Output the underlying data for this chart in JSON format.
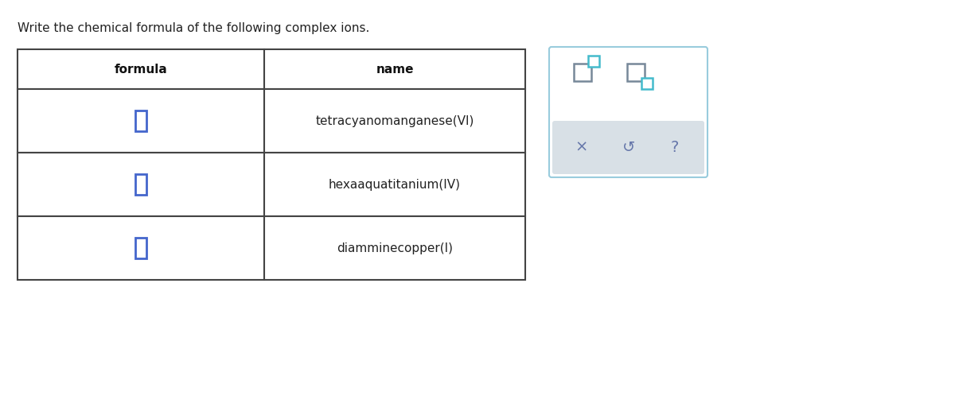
{
  "title": "Write the chemical formula of the following complex ions.",
  "title_fontsize": 11,
  "title_color": "#222222",
  "background_color": "#ffffff",
  "col1_header": "formula",
  "col2_header": "name",
  "rows": [
    {
      "name": "tetracyanomanganese(VI)"
    },
    {
      "name": "hexaaquatitanium(IV)"
    },
    {
      "name": "diamminecopper(I)"
    }
  ],
  "table_border_color": "#444444",
  "input_box_color": "#4466cc",
  "panel_border_color": "#99ccdd",
  "panel_bg": "#ffffff",
  "panel_bottom_bg": "#d8e0e6",
  "icon_color_gray": "#6677aa",
  "icon_sq_gray": "#778899",
  "icon_sq_teal": "#44bbcc"
}
